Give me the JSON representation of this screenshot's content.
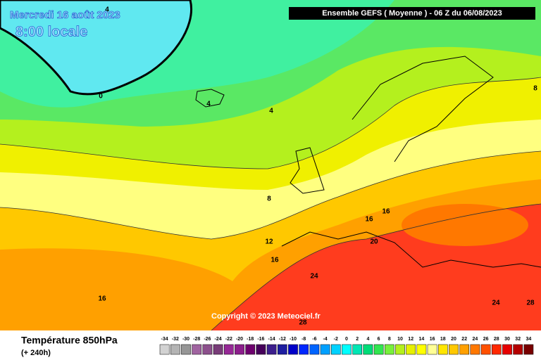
{
  "header": {
    "date": "Mercredi 16 août 2023",
    "time": "8:00 locale",
    "run": "Ensemble GEFS  ( Moyenne )  -  06 Z du 06/08/2023"
  },
  "copyright": "Copyright © 2023 Meteociel.fr",
  "footer": {
    "title": "Température 850hPa",
    "lead": "(+ 240h)"
  },
  "legend": {
    "values": [
      -34,
      -32,
      -30,
      -28,
      -26,
      -24,
      -22,
      -20,
      -18,
      -16,
      -14,
      -12,
      -10,
      -8,
      -6,
      -4,
      -2,
      0,
      2,
      4,
      6,
      8,
      10,
      12,
      14,
      16,
      18,
      20,
      22,
      24,
      26,
      28,
      30,
      32,
      34
    ],
    "colors": [
      "#d2d2d2",
      "#b4b4b4",
      "#969696",
      "#a064a0",
      "#8c508c",
      "#783c78",
      "#962896",
      "#8c1e8c",
      "#6e006e",
      "#46005a",
      "#3c1e8c",
      "#1e1ea0",
      "#0000c8",
      "#0028ff",
      "#0064ff",
      "#00a0ff",
      "#00d2ff",
      "#00ffff",
      "#00e6b4",
      "#00dc78",
      "#32e650",
      "#78f03c",
      "#b4f01e",
      "#e6f000",
      "#ffff00",
      "#ffff96",
      "#ffe600",
      "#ffc800",
      "#ffa000",
      "#ff7800",
      "#ff5000",
      "#ff2800",
      "#e60000",
      "#b40000",
      "#780000"
    ]
  },
  "contours": [
    "4",
    "0",
    "4",
    "4",
    "8",
    "8",
    "12",
    "16",
    "16",
    "16",
    "20",
    "24",
    "24",
    "28",
    "28",
    "16"
  ]
}
